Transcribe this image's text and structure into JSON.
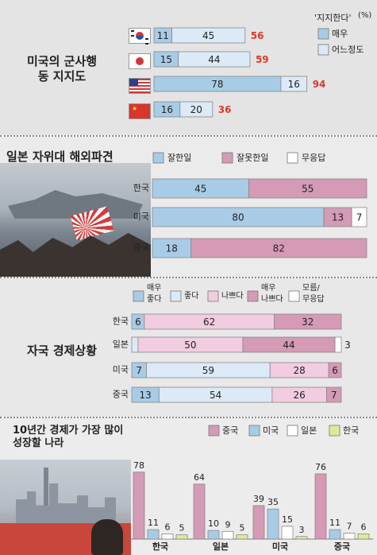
{
  "chart_data": [
    {
      "type": "bar",
      "title": "미국의 군사행동 지지도",
      "legend_title": "'지지한다'",
      "unit": "(%)",
      "stacked": true,
      "orientation": "horizontal",
      "categories": [
        "korea-flag",
        "japan-flag",
        "usa-flag",
        "china-flag"
      ],
      "series": [
        {
          "name": "매우",
          "color": "#a8cce6",
          "values": [
            11,
            15,
            78,
            16
          ]
        },
        {
          "name": "어느정도",
          "color": "#dbeaf6",
          "values": [
            45,
            44,
            16,
            20
          ]
        }
      ],
      "totals": [
        56,
        59,
        94,
        36
      ],
      "total_color": "#d83a2a",
      "xlim": [
        0,
        100
      ],
      "legend_position": "top-right"
    },
    {
      "type": "bar",
      "title": "일본 자위대 해외파견",
      "stacked": true,
      "orientation": "horizontal",
      "categories": [
        "한국",
        "미국",
        "중국"
      ],
      "series": [
        {
          "name": "잘한일",
          "color": "#a8cce6",
          "values": [
            45,
            80,
            18
          ]
        },
        {
          "name": "잘못한일",
          "color": "#d49ab6",
          "values": [
            55,
            13,
            82
          ]
        },
        {
          "name": "무응답",
          "color": "#ffffff",
          "values": [
            0,
            7,
            0
          ]
        }
      ],
      "xlim": [
        0,
        100
      ],
      "legend_position": "top"
    },
    {
      "type": "bar",
      "title": "자국 경제상황",
      "stacked": true,
      "orientation": "horizontal",
      "categories": [
        "한국",
        "일본",
        "미국",
        "중국"
      ],
      "series": [
        {
          "name": "매우 좋다",
          "color": "#a8cce6",
          "values": [
            6,
            0,
            7,
            13
          ]
        },
        {
          "name": "좋다",
          "color": "#dbeaf6",
          "values": [
            0,
            3,
            59,
            54
          ]
        },
        {
          "name": "나쁘다",
          "color": "#f2cce0",
          "values": [
            62,
            50,
            28,
            26
          ]
        },
        {
          "name": "매우 나쁘다",
          "color": "#d49ab6",
          "values": [
            32,
            44,
            6,
            7
          ]
        },
        {
          "name": "모름/ 무응답",
          "color": "#ffffff",
          "values": [
            0,
            3,
            0,
            0
          ]
        }
      ],
      "xlim": [
        0,
        100
      ],
      "legend_position": "top"
    },
    {
      "type": "bar",
      "title": "10년간 경제가 가장 많이 성장할 나라",
      "stacked": false,
      "orientation": "vertical",
      "categories": [
        "한국",
        "일본",
        "미국",
        "중국"
      ],
      "series": [
        {
          "name": "중국",
          "color": "#d49ab6",
          "values": [
            78,
            64,
            39,
            76
          ]
        },
        {
          "name": "미국",
          "color": "#a8cce6",
          "values": [
            11,
            10,
            35,
            11
          ]
        },
        {
          "name": "일본",
          "color": "#ffffff",
          "values": [
            6,
            9,
            15,
            7
          ]
        },
        {
          "name": "한국",
          "color": "#dfe89a",
          "values": [
            5,
            5,
            3,
            6
          ]
        }
      ],
      "ylim": [
        0,
        100
      ],
      "legend_position": "top"
    }
  ],
  "colors": {
    "panel_bg": "#e8e8e8",
    "panel_bg2": "#eeeeee",
    "divider": "#888888"
  }
}
